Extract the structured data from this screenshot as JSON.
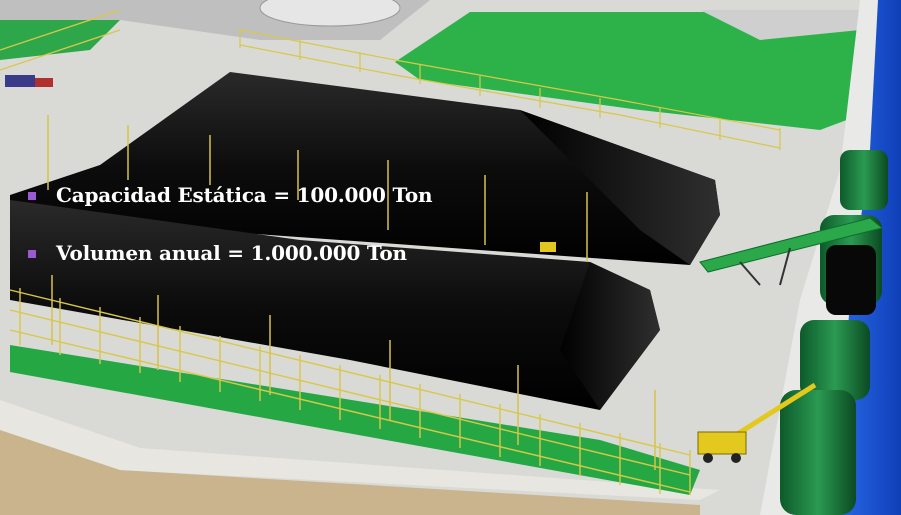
{
  "slide": {
    "bullets": [
      {
        "text": "Capacidad Estática = 100.000 Ton"
      },
      {
        "text": "Volumen anual = 1.000.000 Ton"
      }
    ]
  },
  "colors": {
    "bullet_marker": "#9b59d6",
    "text": "#ffffff",
    "stockpile": "#050505",
    "grass": "#22b33a",
    "ground": "#dcdcd8",
    "water": "#1a56d6",
    "crane": "#e3c81e"
  },
  "scene_objects": [
    "coal-stockpile",
    "coal-stockpile",
    "perimeter-fence",
    "green-lawn",
    "harbor-water",
    "moored-barges",
    "mobile-crane",
    "stacker-conveyor"
  ]
}
